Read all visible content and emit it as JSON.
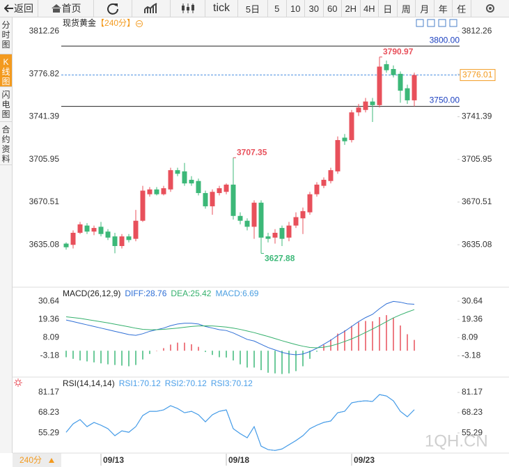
{
  "toolbar": {
    "back": "返回",
    "home": "首页",
    "periods": [
      "tick",
      "5日",
      "5",
      "10",
      "30",
      "60",
      "2H",
      "4H",
      "日",
      "周",
      "月",
      "年",
      "任"
    ]
  },
  "sidebar": [
    "分时图",
    "K线图",
    "闪电图",
    "合约资料"
  ],
  "period_button": "240分",
  "watermark": "1QH.CN",
  "chart_data": [
    {
      "type": "candlestick",
      "title": "现货黄金",
      "subtitle": "【240分】",
      "categories": [
        null,
        null,
        null,
        null,
        null,
        "09/13",
        null,
        null,
        null,
        null,
        null,
        null,
        null,
        null,
        null,
        null,
        null,
        null,
        null,
        null,
        null,
        null,
        null,
        "09/18",
        null,
        null,
        null,
        null,
        null,
        null,
        null,
        null,
        null,
        null,
        null,
        null,
        null,
        null,
        null,
        null,
        null,
        "09/23",
        null,
        null,
        null,
        null,
        null,
        null,
        null,
        null,
        null
      ],
      "open": [
        3636,
        3635,
        3645,
        3651,
        3646,
        3650,
        3646,
        3642,
        3634,
        3642,
        3640,
        3655,
        3677,
        3681,
        3677,
        3681,
        3697,
        3696,
        3689,
        3688,
        3678,
        3667,
        3678,
        3679,
        3685,
        3659,
        3655,
        3650,
        3670,
        3642,
        3641,
        3649,
        3641,
        3651,
        3657,
        3662,
        3677,
        3684,
        3688,
        3696,
        3724,
        3722,
        3745,
        3747,
        3754,
        3751,
        3785,
        3781,
        3777,
        3765,
        3755
      ],
      "high": [
        3637,
        3647,
        3654,
        3653,
        3651,
        3654,
        3648,
        3645,
        3644,
        3644,
        3664,
        3684,
        3683,
        3683,
        3684,
        3699,
        3699,
        3703,
        3692,
        3690,
        3680,
        3681,
        3684,
        3686,
        3707.35,
        3662,
        3657,
        3672,
        3672,
        3645,
        3648,
        3651,
        3654,
        3662,
        3666,
        3679,
        3687,
        3691,
        3699,
        3725,
        3727,
        3747,
        3752,
        3757,
        3757,
        3790.97,
        3788,
        3784,
        3779,
        3768,
        3778
      ],
      "low": [
        3631,
        3632,
        3644,
        3644,
        3643,
        3642,
        3639,
        3628,
        3632,
        3637,
        3638,
        3654,
        3675,
        3676,
        3676,
        3679,
        3692,
        3684,
        3684,
        3676,
        3665,
        3660,
        3676,
        3677,
        3656,
        3652,
        3647,
        3640,
        3627.88,
        3637,
        3636,
        3634,
        3638,
        3649,
        3644,
        3660,
        3675,
        3682,
        3686,
        3694,
        3718,
        3720,
        3742,
        3745,
        3737,
        3749,
        3778,
        3774,
        3753,
        3752,
        3750
      ],
      "close": [
        3633,
        3645,
        3652,
        3646,
        3649,
        3644,
        3641,
        3634,
        3642,
        3639,
        3655,
        3680,
        3681,
        3677,
        3682,
        3697,
        3694,
        3686,
        3686,
        3678,
        3667,
        3679,
        3682,
        3685,
        3659,
        3655,
        3650,
        3670,
        3641,
        3640,
        3645,
        3640,
        3651,
        3658,
        3663,
        3677,
        3685,
        3689,
        3697,
        3722,
        3721,
        3745,
        3749,
        3754,
        3751,
        3783,
        3780,
        3776,
        3763,
        3755,
        3776.01
      ],
      "up_color": "#e8505b",
      "down_color": "#3cb878",
      "ylim": [
        3601.0,
        3822.1
      ],
      "yticks": [
        3812.26,
        3776.82,
        3741.39,
        3705.95,
        3670.51,
        3635.08
      ],
      "hlines": [
        {
          "value": 3800,
          "label": "3800.00"
        },
        {
          "value": 3750,
          "label": "3750.00"
        }
      ],
      "annotations": [
        3790.97,
        3707.35,
        3627.88
      ]
    },
    {
      "type": "macd",
      "title": "MACD(26,12,9)",
      "series": [
        {
          "name": "DIFF:28.76",
          "type": "line",
          "color": "#2f6fd6",
          "values": [
            19,
            18,
            17,
            16,
            15,
            14,
            13,
            12,
            11,
            10,
            9.5,
            10.5,
            12,
            13,
            14,
            15.5,
            16.5,
            17,
            17,
            16.5,
            15,
            14,
            13,
            12.5,
            11,
            9,
            7,
            6,
            4,
            2,
            0.5,
            -1,
            -2,
            -2.5,
            -2,
            -0.5,
            1.5,
            4,
            6.5,
            9.5,
            12,
            15,
            18,
            20.5,
            22.5,
            26,
            29,
            30.5,
            30,
            29,
            28.76
          ]
        },
        {
          "name": "DEA:25.42",
          "type": "line",
          "color": "#34b06c",
          "values": [
            21,
            20.5,
            20,
            19.3,
            18.6,
            17.9,
            17.2,
            16.4,
            15.6,
            14.8,
            13.9,
            13.2,
            13,
            13,
            13.2,
            13.6,
            14,
            14.5,
            15,
            15.3,
            15.4,
            15.3,
            15,
            14.6,
            14,
            13.2,
            12.2,
            11.2,
            10,
            8.8,
            7.5,
            6.2,
            5,
            3.8,
            2.8,
            2,
            1.8,
            2.2,
            3,
            4.2,
            5.7,
            7.3,
            9.2,
            11.3,
            13.4,
            15.6,
            18,
            20.3,
            22.2,
            23.9,
            25.42
          ]
        },
        {
          "name": "MACD:6.69",
          "type": "bar",
          "color": "#4a9ee0",
          "values": [
            -4,
            -5,
            -6,
            -6.6,
            -7.2,
            -7.8,
            -8.4,
            -8.8,
            -9.2,
            -9.6,
            -8.8,
            -5.4,
            -2,
            0,
            1.6,
            3.8,
            5,
            5,
            4,
            2.4,
            -0.8,
            -2.6,
            -4,
            -4.2,
            -6,
            -8.4,
            -10.4,
            -10.4,
            -12,
            -13.6,
            -14,
            -14.4,
            -14,
            -12.6,
            -9.6,
            -5,
            -0.6,
            3.6,
            7,
            10.6,
            12.6,
            15.4,
            17.6,
            18.4,
            18.2,
            20.8,
            22,
            20.4,
            15.6,
            10.2,
            6.69
          ]
        }
      ],
      "up_color": "#e8505b",
      "down_color": "#3cb878",
      "ylim": [
        -15,
        38
      ],
      "yticks": [
        30.64,
        19.36,
        8.09,
        -3.18
      ]
    },
    {
      "type": "line",
      "title": "RSI(14,14,14)",
      "series": [
        {
          "name": "RSI1:70.12",
          "type": "line",
          "color": "#4a9ee8",
          "values": [
            55.7,
            61.1,
            63.8,
            59.3,
            62.0,
            60.2,
            58.0,
            53.5,
            56.6,
            55.7,
            59.3,
            66.4,
            69.1,
            69.1,
            70.0,
            72.7,
            70.9,
            68.2,
            69.1,
            66.9,
            62.4,
            66.9,
            69.1,
            70.0,
            58.0,
            54.8,
            52.2,
            59.3,
            46.8,
            44.6,
            44.1,
            45.0,
            47.7,
            50.4,
            53.5,
            58.0,
            60.2,
            62.0,
            62.9,
            68.2,
            69.1,
            74.5,
            75.4,
            75.8,
            75.4,
            79.8,
            78.9,
            75.8,
            69.1,
            65.6,
            70.12
          ]
        },
        {
          "name": "RSI2:70.12",
          "type": "line",
          "color": "#4a9ee8",
          "values": [
            55.7,
            61.1,
            63.8,
            59.3,
            62.0,
            60.2,
            58.0,
            53.5,
            56.6,
            55.7,
            59.3,
            66.4,
            69.1,
            69.1,
            70.0,
            72.7,
            70.9,
            68.2,
            69.1,
            66.9,
            62.4,
            66.9,
            69.1,
            70.0,
            58.0,
            54.8,
            52.2,
            59.3,
            46.8,
            44.6,
            44.1,
            45.0,
            47.7,
            50.4,
            53.5,
            58.0,
            60.2,
            62.0,
            62.9,
            68.2,
            69.1,
            74.5,
            75.4,
            75.8,
            75.4,
            79.8,
            78.9,
            75.8,
            69.1,
            65.6,
            70.12
          ]
        },
        {
          "name": "RSI3:70.12",
          "type": "line",
          "color": "#4a9ee8",
          "values": [
            55.7,
            61.1,
            63.8,
            59.3,
            62.0,
            60.2,
            58.0,
            53.5,
            56.6,
            55.7,
            59.3,
            66.4,
            69.1,
            69.1,
            70.0,
            72.7,
            70.9,
            68.2,
            69.1,
            66.9,
            62.4,
            66.9,
            69.1,
            70.0,
            58.0,
            54.8,
            52.2,
            59.3,
            46.8,
            44.6,
            44.1,
            45.0,
            47.7,
            50.4,
            53.5,
            58.0,
            60.2,
            62.0,
            62.9,
            68.2,
            69.1,
            74.5,
            75.4,
            75.8,
            75.4,
            79.8,
            78.9,
            75.8,
            69.1,
            65.6,
            70.12
          ]
        }
      ],
      "ylim": [
        42.4,
        89.2
      ],
      "yticks": [
        81.17,
        68.23,
        55.29
      ]
    }
  ]
}
